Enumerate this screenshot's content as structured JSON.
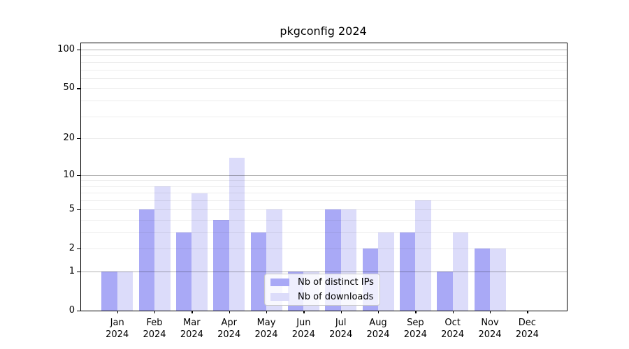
{
  "title": "pkgconfig 2024",
  "legend": {
    "items": [
      {
        "label": "Nb of distinct IPs",
        "color": "#a9a9f6"
      },
      {
        "label": "Nb of downloads",
        "color": "#dcdcfa"
      }
    ],
    "position": "lower center"
  },
  "chart_data": {
    "type": "bar",
    "title": "pkgconfig 2024",
    "categories": [
      "Jan 2024",
      "Feb 2024",
      "Mar 2024",
      "Apr 2024",
      "May 2024",
      "Jun 2024",
      "Jul 2024",
      "Aug 2024",
      "Sep 2024",
      "Oct 2024",
      "Nov 2024",
      "Dec 2024"
    ],
    "series": [
      {
        "name": "Nb of distinct IPs",
        "color": "#a9a9f6",
        "values": [
          1,
          5,
          3,
          4,
          3,
          1,
          5,
          2,
          3,
          1,
          2,
          0
        ]
      },
      {
        "name": "Nb of downloads",
        "color": "#dcdcfa",
        "values": [
          1,
          8,
          7,
          14,
          5,
          1,
          5,
          3,
          6,
          3,
          2,
          0
        ]
      }
    ],
    "xlabel": "",
    "ylabel": "",
    "y_scale": "log1p",
    "y_axis_ticks": [
      0,
      1,
      2,
      5,
      10,
      20,
      50,
      100
    ],
    "y_top_value": 112,
    "grid_major_values": [
      1,
      10,
      100
    ],
    "grid_minor_values": [
      2,
      3,
      4,
      5,
      6,
      7,
      8,
      9,
      20,
      30,
      40,
      50,
      60,
      70,
      80,
      90
    ],
    "grid": "on",
    "legend_position": "lower center"
  }
}
